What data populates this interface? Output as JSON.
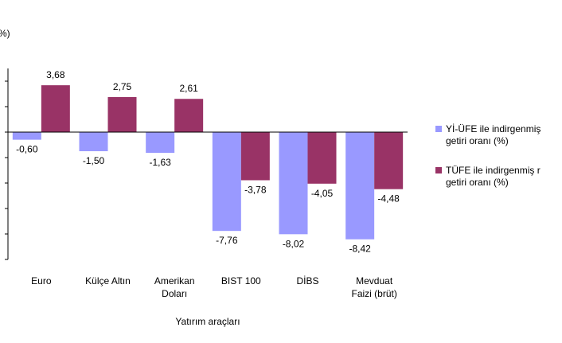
{
  "chart_data": {
    "type": "bar",
    "ylabel": "%)",
    "xlabel": "Yatırım araçları",
    "categories": [
      [
        "Euro"
      ],
      [
        "Külçe Altın"
      ],
      [
        "Amerikan",
        "Doları"
      ],
      [
        "BIST 100"
      ],
      [
        "DİBS"
      ],
      [
        "Mevduat",
        "Faizi (brüt)"
      ]
    ],
    "ylim": [
      -10,
      5
    ],
    "grid": false,
    "legend_position": "right",
    "series": [
      {
        "name": "Yİ-ÜFE ile indirgenmiş reel getiri oranı (%)",
        "legend_lines": [
          "Yİ-ÜFE ile indirgenmiş",
          "getiri oranı (%)"
        ],
        "color": "#9999ff",
        "values": [
          -0.6,
          -1.5,
          -1.63,
          -7.76,
          -8.02,
          -8.42
        ],
        "labels": [
          "-0,60",
          "-1,50",
          "-1,63",
          "-7,76",
          "-8,02",
          "-8,42"
        ]
      },
      {
        "name": "TÜFE ile indirgenmiş reel getiri oranı (%)",
        "legend_lines": [
          "TÜFE ile indirgenmiş r",
          "getiri oranı (%)"
        ],
        "color": "#993366",
        "values": [
          3.68,
          2.75,
          2.61,
          -3.78,
          -4.05,
          -4.48
        ],
        "labels": [
          "3,68",
          "2,75",
          "2,61",
          "-3,78",
          "-4,05",
          "-4,48"
        ]
      }
    ]
  }
}
